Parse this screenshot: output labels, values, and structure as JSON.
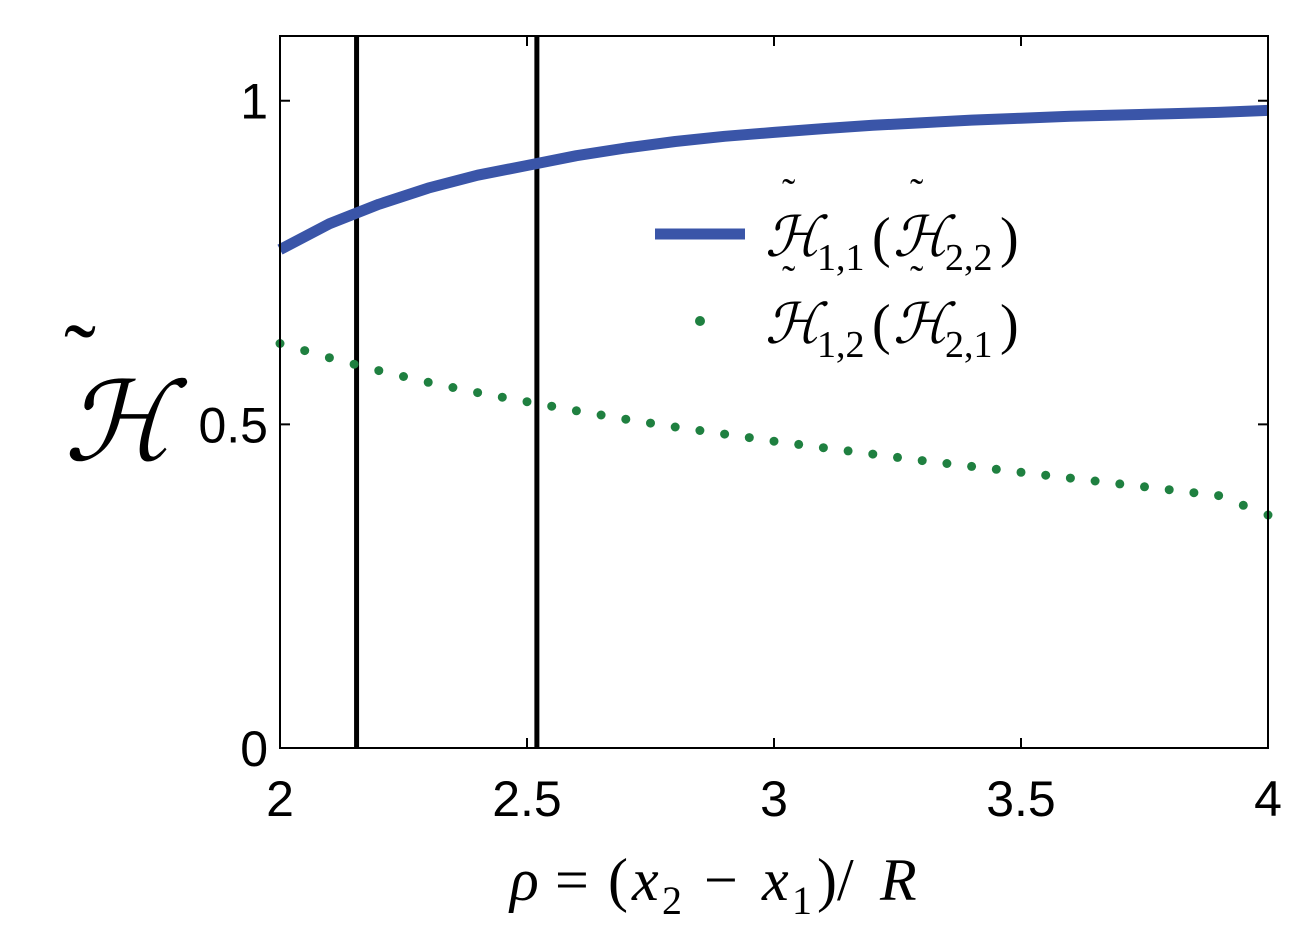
{
  "chart_data": {
    "type": "line",
    "xlabel": "ρ = (x₂ − x₁)/R",
    "ylabel": "H̃",
    "xlim": [
      2,
      4
    ],
    "ylim": [
      0,
      1.1
    ],
    "x_ticks": [
      2,
      2.5,
      3,
      3.5,
      4
    ],
    "x_tick_labels": [
      "2",
      "2.5",
      "3",
      "3.5",
      "4"
    ],
    "y_ticks": [
      0,
      0.5,
      1
    ],
    "y_tick_labels": [
      "0",
      "0.5",
      "1"
    ],
    "grid": false,
    "legend_position": "right",
    "vertical_lines": [
      2.155,
      2.52
    ],
    "series": [
      {
        "name": "H̃1,1(H̃2,2)",
        "style": "solid",
        "color": "#3a55a8",
        "x": [
          2.0,
          2.1,
          2.2,
          2.3,
          2.4,
          2.5,
          2.6,
          2.7,
          2.8,
          2.9,
          3.0,
          3.1,
          3.2,
          3.3,
          3.4,
          3.5,
          3.6,
          3.7,
          3.8,
          3.9,
          4.0
        ],
        "y": [
          0.77,
          0.81,
          0.84,
          0.865,
          0.885,
          0.9,
          0.915,
          0.927,
          0.937,
          0.945,
          0.951,
          0.957,
          0.962,
          0.966,
          0.97,
          0.973,
          0.976,
          0.978,
          0.98,
          0.982,
          0.985
        ]
      },
      {
        "name": "H̃1,2(H̃2,1)",
        "style": "dotted",
        "color": "#1f8040",
        "x": [
          2.0,
          2.1,
          2.2,
          2.3,
          2.4,
          2.5,
          2.6,
          2.7,
          2.8,
          2.9,
          3.0,
          3.1,
          3.2,
          3.3,
          3.4,
          3.5,
          3.6,
          3.7,
          3.8,
          3.9,
          4.0
        ],
        "y": [
          0.625,
          0.603,
          0.583,
          0.565,
          0.549,
          0.535,
          0.521,
          0.508,
          0.496,
          0.485,
          0.474,
          0.464,
          0.454,
          0.444,
          0.435,
          0.426,
          0.417,
          0.408,
          0.399,
          0.39,
          0.36
        ]
      }
    ]
  }
}
